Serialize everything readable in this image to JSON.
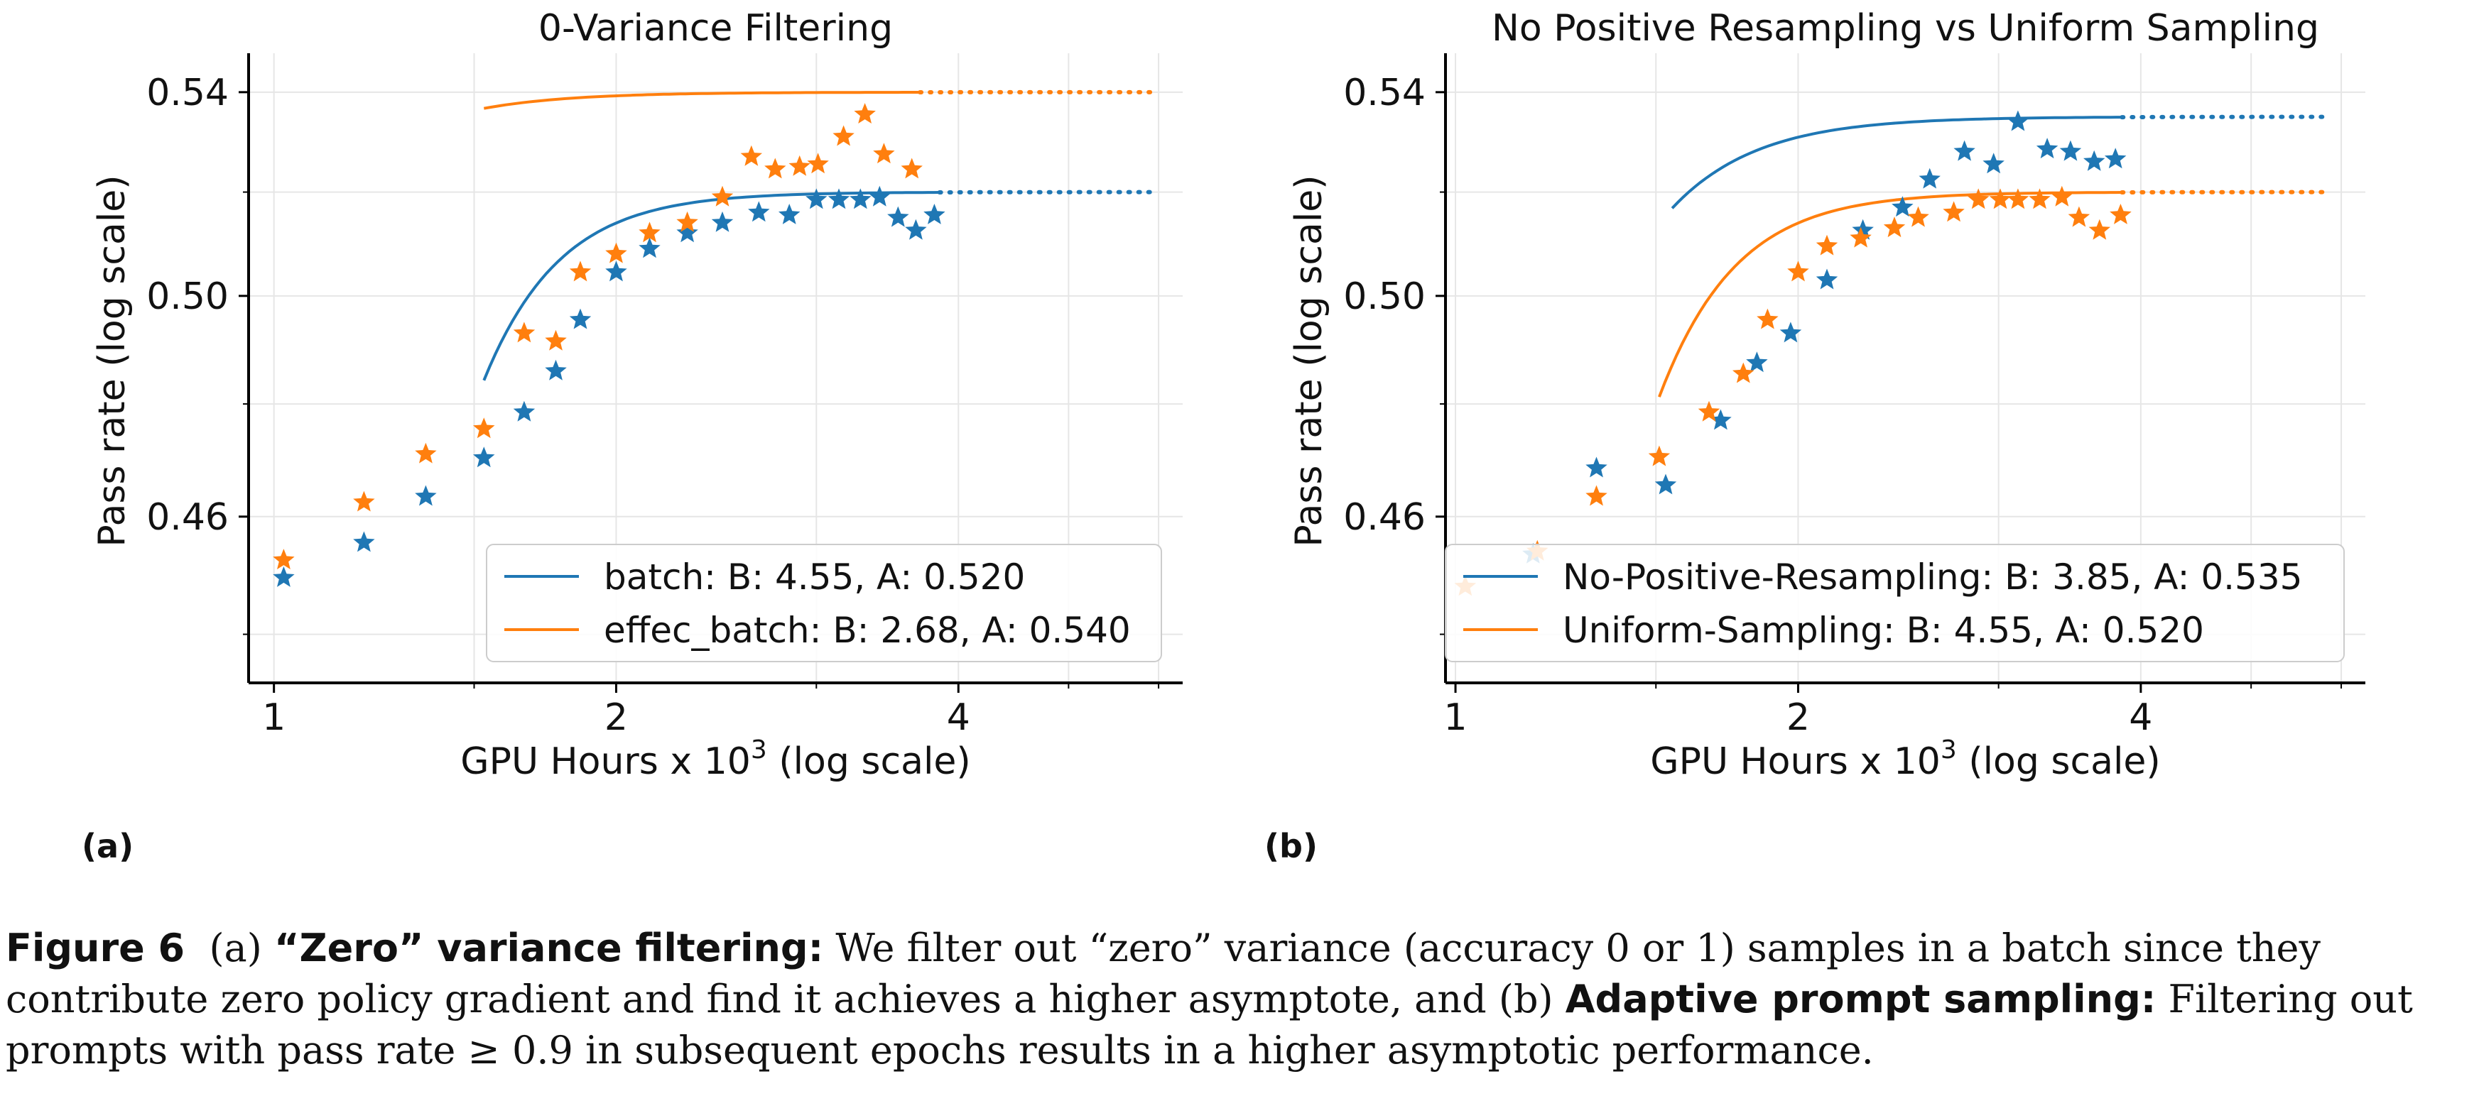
{
  "chart_data": [
    {
      "type": "scatter",
      "title": "0-Variance Filtering",
      "xlabel_pre": "GPU Hours x 10",
      "xlabel_sup": "3",
      "xlabel_post": " (log scale)",
      "ylabel": "Pass rate (log scale)",
      "xscale": "log",
      "yscale": "log",
      "xlim": [
        0.95,
        6.3
      ],
      "ylim": [
        0.432,
        0.548
      ],
      "xticks": [
        {
          "v": 1,
          "label": "1"
        },
        {
          "v": 2,
          "label": "2"
        },
        {
          "v": 4,
          "label": "4"
        }
      ],
      "yticks": [
        {
          "v": 0.46,
          "label": "0.46"
        },
        {
          "v": 0.5,
          "label": "0.50"
        },
        {
          "v": 0.54,
          "label": "0.54"
        }
      ],
      "grid": true,
      "legend_position": "lower-right",
      "colors": {
        "blue": "#1f77b4",
        "orange": "#ff7f0e"
      },
      "series": [
        {
          "name": "batch: B: 4.55, A: 0.520",
          "color": "#1f77b4",
          "points": [
            [
              1.02,
              0.4495
            ],
            [
              1.2,
              0.4555
            ],
            [
              1.36,
              0.4635
            ],
            [
              1.53,
              0.4703
            ],
            [
              1.66,
              0.4785
            ],
            [
              1.77,
              0.486
            ],
            [
              1.86,
              0.4955
            ],
            [
              2.0,
              0.5045
            ],
            [
              2.14,
              0.509
            ],
            [
              2.31,
              0.512
            ],
            [
              2.48,
              0.514
            ],
            [
              2.67,
              0.516
            ],
            [
              2.84,
              0.5155
            ],
            [
              3.0,
              0.5185
            ],
            [
              3.14,
              0.5185
            ],
            [
              3.28,
              0.5185
            ],
            [
              3.41,
              0.519
            ],
            [
              3.54,
              0.515
            ],
            [
              3.67,
              0.5125
            ],
            [
              3.81,
              0.5155
            ]
          ],
          "fit_x_start": 1.53,
          "fit_x_end": 3.85,
          "fit_x_extrap_end": 5.9,
          "fit": {
            "A": 0.52,
            "B": 4.55,
            "c": 7.0
          }
        },
        {
          "name": "effec_batch: B: 2.68, A: 0.540",
          "color": "#ff7f0e",
          "points": [
            [
              1.02,
              0.4525
            ],
            [
              1.2,
              0.4625
            ],
            [
              1.36,
              0.471
            ],
            [
              1.53,
              0.4755
            ],
            [
              1.66,
              0.493
            ],
            [
              1.77,
              0.4915
            ],
            [
              1.86,
              0.5045
            ],
            [
              2.0,
              0.508
            ],
            [
              2.14,
              0.512
            ],
            [
              2.31,
              0.514
            ],
            [
              2.48,
              0.519
            ],
            [
              2.63,
              0.527
            ],
            [
              2.76,
              0.5245
            ],
            [
              2.9,
              0.525
            ],
            [
              3.01,
              0.5255
            ],
            [
              3.17,
              0.531
            ],
            [
              3.31,
              0.5355
            ],
            [
              3.44,
              0.5275
            ],
            [
              3.64,
              0.5245
            ]
          ],
          "fit_x_start": 1.53,
          "fit_x_end": 3.7,
          "fit_x_extrap_end": 5.9,
          "fit": {
            "A": 0.54,
            "B": 2.68,
            "c": 5.6
          }
        }
      ]
    },
    {
      "type": "scatter",
      "title": "No Positive Resampling vs Uniform Sampling",
      "xlabel_pre": "GPU Hours x 10",
      "xlabel_sup": "3",
      "xlabel_post": " (log scale)",
      "ylabel": "Pass rate (log scale)",
      "xscale": "log",
      "yscale": "log",
      "xlim": [
        0.98,
        6.3
      ],
      "ylim": [
        0.432,
        0.548
      ],
      "xticks": [
        {
          "v": 1,
          "label": "1"
        },
        {
          "v": 2,
          "label": "2"
        },
        {
          "v": 4,
          "label": "4"
        }
      ],
      "yticks": [
        {
          "v": 0.46,
          "label": "0.46"
        },
        {
          "v": 0.5,
          "label": "0.50"
        },
        {
          "v": 0.54,
          "label": "0.54"
        }
      ],
      "grid": true,
      "legend_position": "lower-right",
      "colors": {
        "blue": "#1f77b4",
        "orange": "#ff7f0e"
      },
      "series": [
        {
          "name": "No-Positive-Resampling: B: 3.85, A: 0.535",
          "color": "#1f77b4",
          "points": [
            [
              1.17,
              0.4535
            ],
            [
              1.33,
              0.4685
            ],
            [
              1.53,
              0.4655
            ],
            [
              1.71,
              0.477
            ],
            [
              1.84,
              0.4875
            ],
            [
              1.97,
              0.493
            ],
            [
              2.12,
              0.503
            ],
            [
              2.28,
              0.5125
            ],
            [
              2.47,
              0.517
            ],
            [
              2.61,
              0.5225
            ],
            [
              2.8,
              0.528
            ],
            [
              2.97,
              0.5255
            ],
            [
              3.12,
              0.534
            ],
            [
              3.31,
              0.5285
            ],
            [
              3.47,
              0.528
            ],
            [
              3.64,
              0.526
            ],
            [
              3.8,
              0.5265
            ]
          ],
          "fit_x_start": 1.55,
          "fit_x_end": 3.85,
          "fit_x_extrap_end": 5.8,
          "fit": {
            "A": 0.535,
            "B": 3.85,
            "c": 6.0
          }
        },
        {
          "name": "Uniform-Sampling: B: 4.55, A: 0.520",
          "color": "#ff7f0e",
          "points": [
            [
              1.02,
              0.448
            ],
            [
              1.18,
              0.454
            ],
            [
              1.33,
              0.4635
            ],
            [
              1.51,
              0.4705
            ],
            [
              1.67,
              0.4785
            ],
            [
              1.79,
              0.4855
            ],
            [
              1.88,
              0.4955
            ],
            [
              2.0,
              0.5045
            ],
            [
              2.12,
              0.5095
            ],
            [
              2.27,
              0.511
            ],
            [
              2.43,
              0.513
            ],
            [
              2.55,
              0.515
            ],
            [
              2.74,
              0.516
            ],
            [
              2.88,
              0.5185
            ],
            [
              3.01,
              0.5185
            ],
            [
              3.12,
              0.5185
            ],
            [
              3.26,
              0.5185
            ],
            [
              3.41,
              0.519
            ],
            [
              3.53,
              0.515
            ],
            [
              3.68,
              0.5125
            ],
            [
              3.84,
              0.5155
            ]
          ],
          "fit_x_start": 1.51,
          "fit_x_end": 3.85,
          "fit_x_extrap_end": 5.8,
          "fit": {
            "A": 0.52,
            "B": 4.55,
            "c": 7.0
          }
        }
      ]
    }
  ],
  "panel_labels": [
    "(a)",
    "(b)"
  ],
  "caption": {
    "fig_label": "Figure 6",
    "part_a_tag": "(a)",
    "part_a_title": "“Zero” variance filtering:",
    "part_a_text": " We filter out “zero” variance (accuracy 0 or 1) samples in a batch since they contribute zero policy gradient and find it achieves a higher asymptote, and ",
    "part_b_tag": "(b)",
    "part_b_title": "Adaptive prompt sampling:",
    "part_b_text": " Filtering out prompts with pass rate ≥ 0.9 in subsequent epochs results in a higher asymptotic performance."
  }
}
